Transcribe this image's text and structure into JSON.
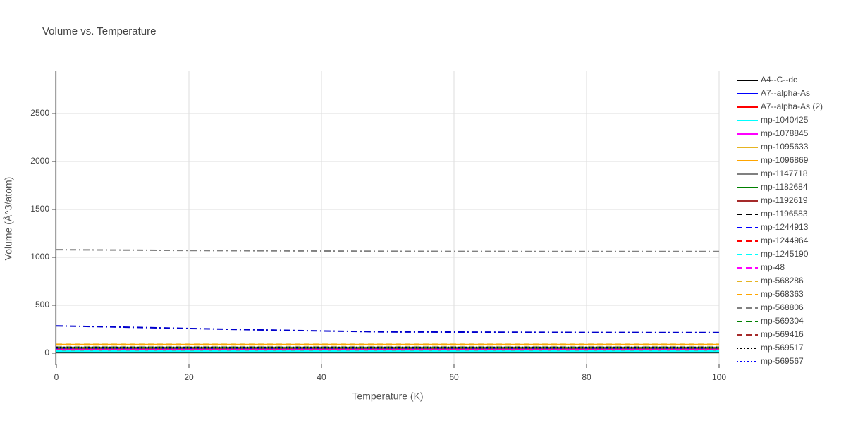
{
  "chart_data": {
    "type": "line",
    "title": "Volume vs. Temperature",
    "x_label": "Temperature (K)",
    "y_label": "Volume (Å^3/atom)",
    "x": [
      0,
      10,
      20,
      30,
      40,
      50,
      60,
      70,
      80,
      90,
      100
    ],
    "xlim": [
      0,
      100
    ],
    "xticks": [
      0,
      20,
      40,
      60,
      80,
      100
    ],
    "ylim": [
      -118,
      2949
    ],
    "yticks": [
      0,
      500,
      1000,
      1500,
      2000,
      2500
    ],
    "grid": true,
    "legend": "right",
    "series": [
      {
        "name": "A4--C--dc",
        "color": "#000000",
        "dash": "solid",
        "values": [
          6,
          6,
          6,
          6,
          6,
          6,
          6,
          6,
          6,
          6,
          6
        ]
      },
      {
        "name": "A7--alpha-As",
        "color": "#0000ff",
        "dash": "solid",
        "values": [
          22,
          22,
          22,
          22,
          22,
          22,
          22,
          22,
          22,
          22,
          22
        ]
      },
      {
        "name": "A7--alpha-As (2)",
        "color": "#ff0000",
        "dash": "solid",
        "values": [
          23,
          23,
          23,
          23,
          23,
          23,
          23,
          23,
          23,
          23,
          23
        ]
      },
      {
        "name": "mp-1040425",
        "color": "#00ffff",
        "dash": "solid",
        "values": [
          20,
          20,
          20,
          20,
          20,
          20,
          20,
          20,
          20,
          20,
          20
        ]
      },
      {
        "name": "mp-1078845",
        "color": "#ff00ff",
        "dash": "solid",
        "values": [
          40,
          40,
          40,
          40,
          40,
          40,
          40,
          40,
          40,
          40,
          40
        ]
      },
      {
        "name": "mp-1095633",
        "color": "#e6b422",
        "dash": "solid",
        "values": [
          90,
          90,
          90,
          90,
          90,
          90,
          90,
          90,
          90,
          90,
          90
        ]
      },
      {
        "name": "mp-1096869",
        "color": "#ffa500",
        "dash": "solid",
        "values": [
          88,
          88,
          88,
          88,
          88,
          88,
          88,
          88,
          88,
          88,
          88
        ]
      },
      {
        "name": "mp-1147718",
        "color": "#808080",
        "dash": "solid",
        "values": [
          60,
          60,
          60,
          60,
          60,
          60,
          60,
          60,
          60,
          60,
          60
        ]
      },
      {
        "name": "mp-1182684",
        "color": "#008000",
        "dash": "solid",
        "values": [
          55,
          55,
          55,
          55,
          55,
          55,
          55,
          55,
          55,
          55,
          55
        ]
      },
      {
        "name": "mp-1192619",
        "color": "#a52a2a",
        "dash": "solid",
        "values": [
          50,
          50,
          50,
          50,
          50,
          50,
          50,
          50,
          50,
          50,
          50
        ]
      },
      {
        "name": "mp-1196583",
        "color": "#000000",
        "dash": "dash",
        "values": [
          62,
          62,
          62,
          62,
          62,
          62,
          62,
          62,
          62,
          62,
          62
        ]
      },
      {
        "name": "mp-1244913",
        "color": "#0000ff",
        "dash": "dash",
        "values": [
          58,
          58,
          58,
          58,
          58,
          58,
          58,
          58,
          58,
          58,
          58
        ]
      },
      {
        "name": "mp-1244964",
        "color": "#ff0000",
        "dash": "dash",
        "values": [
          45,
          45,
          45,
          45,
          45,
          45,
          45,
          45,
          45,
          45,
          45
        ]
      },
      {
        "name": "mp-1245190",
        "color": "#00ffff",
        "dash": "dash",
        "values": [
          25,
          25,
          25,
          25,
          25,
          25,
          25,
          25,
          25,
          25,
          25
        ]
      },
      {
        "name": "mp-48",
        "color": "#ff00ff",
        "dash": "dash",
        "values": [
          42,
          42,
          42,
          42,
          42,
          42,
          42,
          42,
          42,
          42,
          42
        ]
      },
      {
        "name": "mp-568286",
        "color": "#e6b422",
        "dash": "dash",
        "values": [
          92,
          92,
          92,
          92,
          92,
          92,
          92,
          92,
          92,
          92,
          92
        ]
      },
      {
        "name": "mp-568363",
        "color": "#ffa500",
        "dash": "dash",
        "values": [
          86,
          86,
          86,
          86,
          86,
          86,
          86,
          86,
          86,
          86,
          86
        ]
      },
      {
        "name": "mp-568806",
        "color": "#808080",
        "dash": "dash",
        "values": [
          64,
          64,
          64,
          64,
          64,
          64,
          64,
          64,
          64,
          64,
          64
        ]
      },
      {
        "name": "mp-569304",
        "color": "#008000",
        "dash": "dash",
        "values": [
          56,
          56,
          56,
          56,
          56,
          56,
          56,
          56,
          56,
          56,
          56
        ]
      },
      {
        "name": "mp-569416",
        "color": "#a52a2a",
        "dash": "dash",
        "values": [
          48,
          48,
          48,
          48,
          48,
          48,
          48,
          48,
          48,
          48,
          48
        ]
      },
      {
        "name": "mp-569517",
        "color": "#000000",
        "dash": "dot",
        "values": [
          60,
          60,
          60,
          60,
          60,
          60,
          60,
          60,
          60,
          60,
          60
        ]
      },
      {
        "name": "mp-569567",
        "color": "#0000ff",
        "dash": "dot",
        "values": [
          52,
          52,
          52,
          52,
          52,
          52,
          52,
          52,
          52,
          52,
          52
        ]
      },
      {
        "name": null,
        "color": "#808080",
        "dash": "dashdot",
        "values": [
          1080,
          1076,
          1072,
          1069,
          1066,
          1063,
          1062,
          1061,
          1060,
          1060,
          1060
        ]
      },
      {
        "name": null,
        "color": "#0000cd",
        "dash": "dashdot",
        "values": [
          285,
          272,
          258,
          244,
          232,
          222,
          220,
          218,
          216,
          215,
          215
        ]
      }
    ]
  }
}
